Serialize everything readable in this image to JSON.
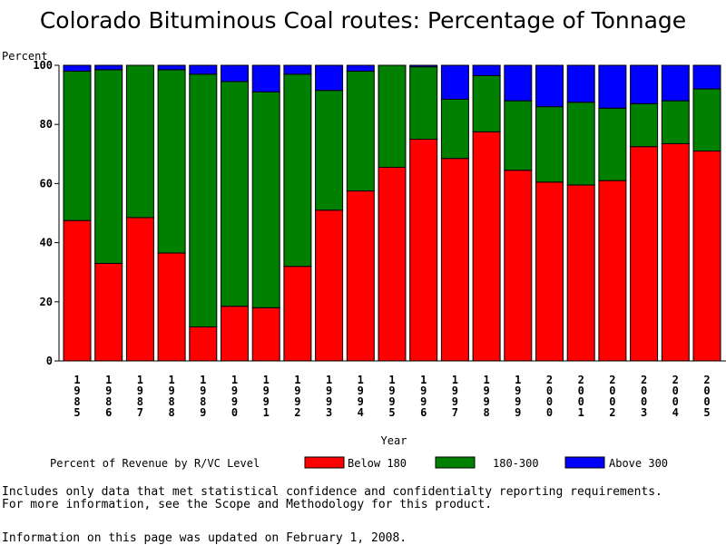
{
  "chart_data": {
    "type": "bar",
    "stacked": true,
    "title": "Colorado Bituminous Coal routes: Percentage of Tonnage",
    "ylabel": "Percent",
    "xlabel": "Year",
    "ylim": [
      0,
      100
    ],
    "yticks": [
      0,
      20,
      40,
      60,
      80,
      100
    ],
    "grid": false,
    "categories": [
      "1985",
      "1986",
      "1987",
      "1988",
      "1989",
      "1990",
      "1991",
      "1992",
      "1993",
      "1994",
      "1995",
      "1996",
      "1997",
      "1998",
      "1999",
      "2000",
      "2001",
      "2002",
      "2003",
      "2004",
      "2005"
    ],
    "legend_title": "Percent of Revenue by R/VC Level",
    "legend_position": "bottom",
    "series": [
      {
        "name": "Below 180",
        "color": "#ff0000",
        "values": [
          47.5,
          33.0,
          48.5,
          36.5,
          11.5,
          18.5,
          18.0,
          32.0,
          51.0,
          57.5,
          65.5,
          75.0,
          68.5,
          77.5,
          64.5,
          60.5,
          59.5,
          61.0,
          72.5,
          73.5,
          71.0
        ]
      },
      {
        "name": "180-300",
        "color": "#008000",
        "values": [
          50.5,
          65.5,
          51.5,
          62.0,
          85.5,
          76.0,
          73.0,
          65.0,
          40.5,
          40.5,
          34.5,
          24.5,
          20.0,
          19.0,
          23.5,
          25.5,
          28.0,
          24.5,
          14.5,
          14.5,
          21.0
        ]
      },
      {
        "name": "Above 300",
        "color": "#0000ff",
        "values": [
          2.0,
          1.5,
          0.0,
          1.5,
          3.0,
          5.5,
          9.0,
          3.0,
          8.5,
          2.0,
          0.0,
          0.5,
          11.5,
          3.5,
          12.0,
          14.0,
          12.5,
          14.5,
          13.0,
          12.0,
          8.0
        ]
      }
    ]
  },
  "footer": {
    "note_line1": "Includes only data that met statistical confidence and confidentialty reporting requirements.",
    "note_line2": "For more information, see the Scope and Methodology for this product.",
    "updated": "Information on this page was updated on February 1, 2008."
  }
}
